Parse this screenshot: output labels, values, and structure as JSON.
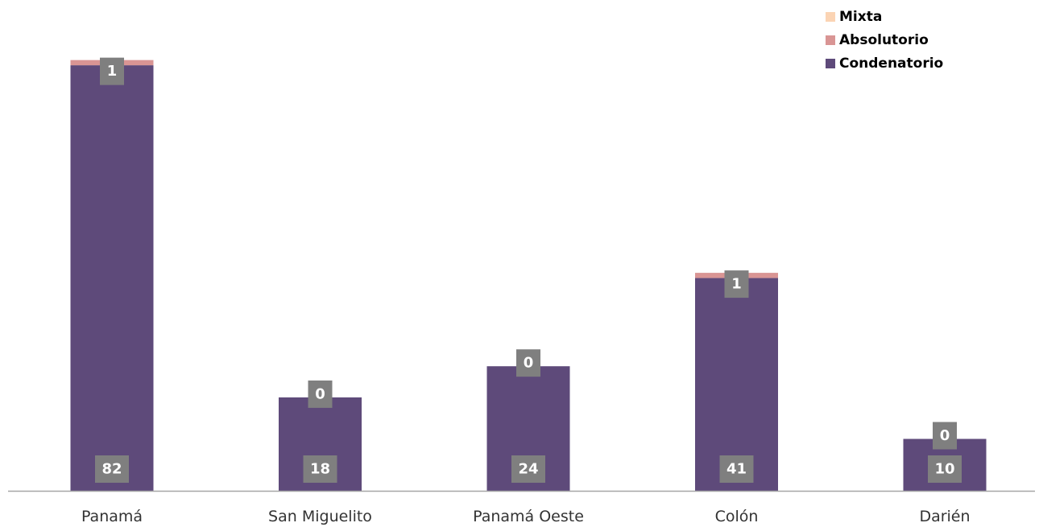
{
  "chart_data": {
    "type": "bar",
    "stacked": true,
    "categories": [
      "Panamá",
      "San Miguelito",
      "Panamá Oeste",
      "Colón",
      "Darién"
    ],
    "series": [
      {
        "name": "Condenatorio",
        "values": [
          82,
          18,
          24,
          41,
          10
        ],
        "color": "#5e4a7a"
      },
      {
        "name": "Absolutorio",
        "values": [
          1,
          0,
          0,
          1,
          0
        ],
        "color": "#d99594"
      },
      {
        "name": "Mixta",
        "values": [
          0,
          0,
          0,
          0,
          0
        ],
        "color": "#fbd4b4"
      }
    ],
    "data_labels": {
      "Condenatorio": [
        "82",
        "18",
        "24",
        "41",
        "10"
      ],
      "Absolutorio": [
        "1",
        "0",
        "0",
        "1",
        "0"
      ]
    },
    "label_box_color": "#7f7f7f",
    "axis_color": "#a6a6a6",
    "ylim": [
      0,
      85
    ],
    "grid": false,
    "legend_position": "top-right"
  }
}
